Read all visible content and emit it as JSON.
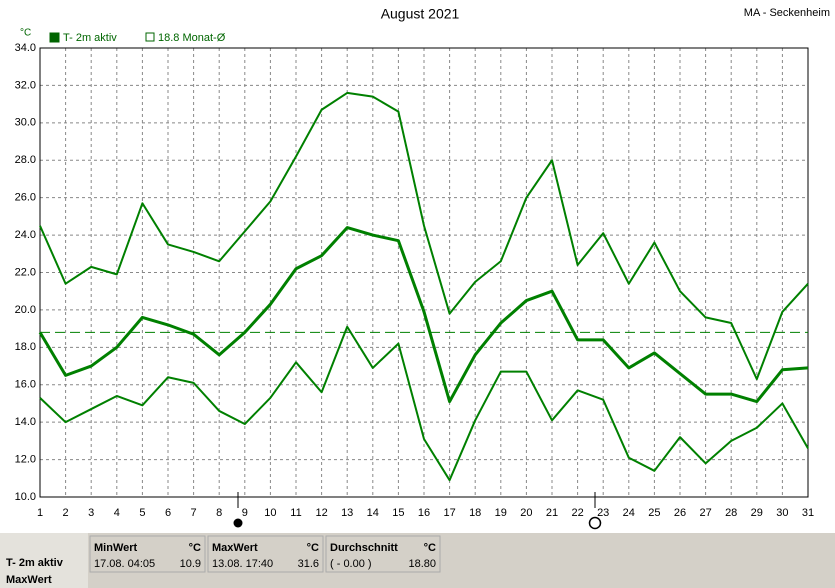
{
  "chart_data": {
    "type": "line",
    "title": "August 2021",
    "station": "MA - Seckenheim",
    "y_label": "°C",
    "x": [
      1,
      2,
      3,
      4,
      5,
      6,
      7,
      8,
      9,
      10,
      11,
      12,
      13,
      14,
      15,
      16,
      17,
      18,
      19,
      20,
      21,
      22,
      23,
      24,
      25,
      26,
      27,
      28,
      29,
      30,
      31
    ],
    "xlim": [
      1,
      31
    ],
    "xticks": [
      1,
      2,
      3,
      4,
      5,
      6,
      7,
      8,
      9,
      10,
      11,
      12,
      13,
      14,
      15,
      16,
      17,
      18,
      19,
      20,
      21,
      22,
      23,
      24,
      25,
      26,
      27,
      28,
      29,
      30,
      31
    ],
    "ylim": [
      10,
      34
    ],
    "yticks": [
      {
        "value": 10,
        "label": "10.0"
      },
      {
        "value": 12,
        "label": "12.0"
      },
      {
        "value": 14,
        "label": "14.0"
      },
      {
        "value": 16,
        "label": "16.0"
      },
      {
        "value": 18,
        "label": "18.0"
      },
      {
        "value": 20,
        "label": "20.0"
      },
      {
        "value": 22,
        "label": "22.0"
      },
      {
        "value": 24,
        "label": "24.0"
      },
      {
        "value": 26,
        "label": "26.0"
      },
      {
        "value": 28,
        "label": "28.0"
      },
      {
        "value": 30,
        "label": "30.0"
      },
      {
        "value": 32,
        "label": "32.0"
      },
      {
        "value": 34,
        "label": "34.0"
      }
    ],
    "grid": true,
    "series": [
      {
        "color": "#008000",
        "values": [
          24.5,
          21.4,
          22.3,
          21.9,
          25.7,
          23.5,
          23.1,
          22.6,
          24.2,
          25.8,
          28.2,
          30.7,
          31.6,
          31.4,
          30.6,
          24.5,
          19.8,
          21.5,
          22.6,
          26.0,
          28.0,
          22.4,
          24.1,
          21.4,
          23.6,
          21.0,
          19.6,
          19.3,
          16.3,
          19.9,
          21.4
        ]
      },
      {
        "name": "T- 2m aktiv",
        "color": "#008000",
        "values": [
          18.8,
          16.5,
          17.0,
          18.0,
          19.6,
          19.2,
          18.7,
          17.6,
          18.8,
          20.3,
          22.2,
          22.9,
          24.4,
          24.0,
          23.7,
          19.9,
          15.1,
          17.6,
          19.3,
          20.5,
          21.0,
          18.4,
          18.4,
          16.9,
          17.7,
          16.6,
          15.5,
          15.5,
          15.1,
          16.8,
          16.9
        ]
      },
      {
        "color": "#008000",
        "values": [
          15.3,
          14.0,
          14.7,
          15.4,
          14.9,
          16.4,
          16.1,
          14.6,
          13.9,
          15.3,
          17.2,
          15.6,
          19.1,
          16.9,
          18.2,
          13.1,
          10.9,
          14.1,
          16.7,
          16.7,
          14.1,
          15.7,
          15.2,
          12.1,
          11.4,
          13.2,
          11.8,
          13.0,
          13.7,
          15.0,
          12.6
        ]
      }
    ],
    "reference": {
      "value": 18.8,
      "label": "18.8 Monat-Ø",
      "color": "#008000"
    }
  },
  "stats": {
    "label": "T- 2m aktiv",
    "sublabel": "MaxWert",
    "columns": [
      {
        "title": "MinWert",
        "unit": "°C",
        "time": "17.08.  04:05",
        "value": "10.9"
      },
      {
        "title": "MaxWert",
        "unit": "°C",
        "time": "13.08.  17:40",
        "value": "31.6"
      },
      {
        "title": "Durchschnitt",
        "unit": "°C",
        "time": "( - 0.00 )",
        "value": "18.80"
      }
    ]
  }
}
